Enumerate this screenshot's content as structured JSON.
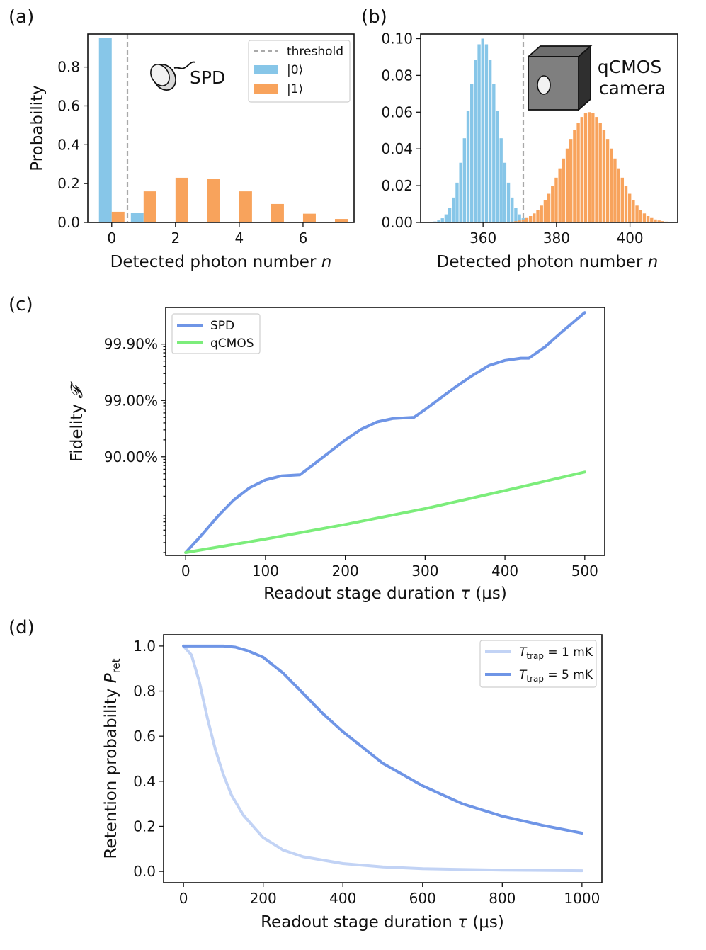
{
  "figure": {
    "panel_labels": [
      "(a)",
      "(b)",
      "(c)",
      "(d)"
    ]
  },
  "chart_data": [
    {
      "id": "a",
      "type": "bar",
      "title": "",
      "xlabel": "Detected photon number",
      "xlabel_var": "n",
      "ylabel": "Probability",
      "xlim": [
        -0.75,
        7.6
      ],
      "ylim": [
        0,
        0.97
      ],
      "xticks": [
        0,
        2,
        4,
        6
      ],
      "yticks": [
        0.0,
        0.2,
        0.4,
        0.6,
        0.8
      ],
      "x": [
        0,
        1,
        2,
        3,
        4,
        5,
        6,
        7
      ],
      "series": [
        {
          "name": "|0⟩",
          "color": "#87c6e8",
          "values": [
            0.95,
            0.05,
            0,
            0,
            0,
            0,
            0,
            0
          ]
        },
        {
          "name": "|1⟩",
          "color": "#f8a35c",
          "values": [
            0.055,
            0.16,
            0.23,
            0.225,
            0.16,
            0.095,
            0.045,
            0.018
          ]
        }
      ],
      "threshold": {
        "name": "threshold",
        "x": 0.5,
        "color": "#a9a9a9"
      },
      "annotation": "SPD",
      "legend_position": "top-right"
    },
    {
      "id": "b",
      "type": "bar",
      "title": "",
      "xlabel": "Detected photon number",
      "xlabel_var": "n",
      "ylabel": "",
      "xlim": [
        343,
        413
      ],
      "ylim": [
        0,
        0.1025
      ],
      "xticks": [
        360,
        380,
        400
      ],
      "yticks": [
        0.0,
        0.02,
        0.04,
        0.06,
        0.08,
        0.1
      ],
      "series": [
        {
          "name": "|0⟩",
          "color": "#87c6e8",
          "distribution": "gaussian",
          "mean": 360,
          "sd": 4.0,
          "peak": 0.1,
          "range": [
            347,
            373
          ]
        },
        {
          "name": "|1⟩",
          "color": "#f8a35c",
          "distribution": "gaussian",
          "mean": 389,
          "sd": 6.7,
          "peak": 0.06,
          "range": [
            367,
            410
          ]
        }
      ],
      "threshold": {
        "name": "threshold",
        "x": 371.5,
        "color": "#a9a9a9"
      },
      "annotation": [
        "qCMOS",
        "camera"
      ]
    },
    {
      "id": "c",
      "type": "line",
      "title": "",
      "xlabel": "Readout stage duration",
      "xlabel_var": "τ",
      "xlabel_unit": "(μs)",
      "ylabel": "Fidelity",
      "ylabel_var": "𝓕",
      "xlim": [
        -25,
        525
      ],
      "xticks": [
        0,
        100,
        200,
        300,
        400,
        500
      ],
      "yscale": "logit-like",
      "yticks": [
        "90.00%",
        "99.00%",
        "99.90%"
      ],
      "yticks_value": [
        1,
        2,
        3
      ],
      "ylim": [
        -0.75,
        3.65
      ],
      "y_unit_note": "y values given as -log10(1 - F)",
      "series": [
        {
          "name": "SPD",
          "color": "#6f95e6",
          "x": [
            0,
            20,
            40,
            60,
            80,
            100,
            120,
            143,
            160,
            180,
            200,
            220,
            240,
            260,
            286,
            300,
            320,
            340,
            360,
            380,
            400,
            420,
            430,
            450,
            470,
            500
          ],
          "y": [
            -0.7,
            -0.39,
            -0.06,
            0.23,
            0.45,
            0.59,
            0.66,
            0.68,
            0.86,
            1.08,
            1.3,
            1.49,
            1.62,
            1.68,
            1.7,
            1.84,
            2.05,
            2.26,
            2.45,
            2.62,
            2.71,
            2.75,
            2.75,
            2.95,
            3.2,
            3.56
          ]
        },
        {
          "name": "qCMOS",
          "color": "#7ced7b",
          "x": [
            0,
            100,
            200,
            300,
            400,
            500
          ],
          "y": [
            -0.7,
            -0.46,
            -0.2,
            0.08,
            0.4,
            0.73
          ]
        }
      ],
      "legend_position": "top-left"
    },
    {
      "id": "d",
      "type": "line",
      "title": "",
      "xlabel": "Readout stage duration",
      "xlabel_var": "τ",
      "xlabel_unit": "(μs)",
      "ylabel": "Retention probability",
      "ylabel_var": "P",
      "ylabel_sub": "ret",
      "xlim": [
        -50,
        1050
      ],
      "ylim": [
        -0.05,
        1.05
      ],
      "xticks": [
        0,
        200,
        400,
        600,
        800,
        1000
      ],
      "yticks": [
        0.0,
        0.2,
        0.4,
        0.6,
        0.8,
        1.0
      ],
      "series": [
        {
          "name": "T_trap = 1 mK",
          "label_var": "T",
          "label_sub": "trap",
          "label_rest": " = 1 mK",
          "color": "#c2d3f5",
          "x": [
            0,
            20,
            40,
            60,
            80,
            100,
            120,
            150,
            200,
            250,
            300,
            400,
            500,
            600,
            800,
            1000
          ],
          "y": [
            1.0,
            0.96,
            0.84,
            0.68,
            0.54,
            0.43,
            0.34,
            0.25,
            0.15,
            0.095,
            0.065,
            0.035,
            0.02,
            0.012,
            0.006,
            0.003
          ]
        },
        {
          "name": "T_trap = 5 mK",
          "label_var": "T",
          "label_sub": "trap",
          "label_rest": " = 5 mK",
          "color": "#6f95e6",
          "x": [
            0,
            50,
            100,
            130,
            160,
            200,
            250,
            300,
            350,
            400,
            450,
            500,
            600,
            700,
            800,
            900,
            1000
          ],
          "y": [
            1.0,
            1.0,
            1.0,
            0.995,
            0.98,
            0.95,
            0.88,
            0.79,
            0.7,
            0.62,
            0.55,
            0.48,
            0.38,
            0.3,
            0.245,
            0.205,
            0.17
          ]
        }
      ],
      "legend_position": "top-right"
    }
  ]
}
